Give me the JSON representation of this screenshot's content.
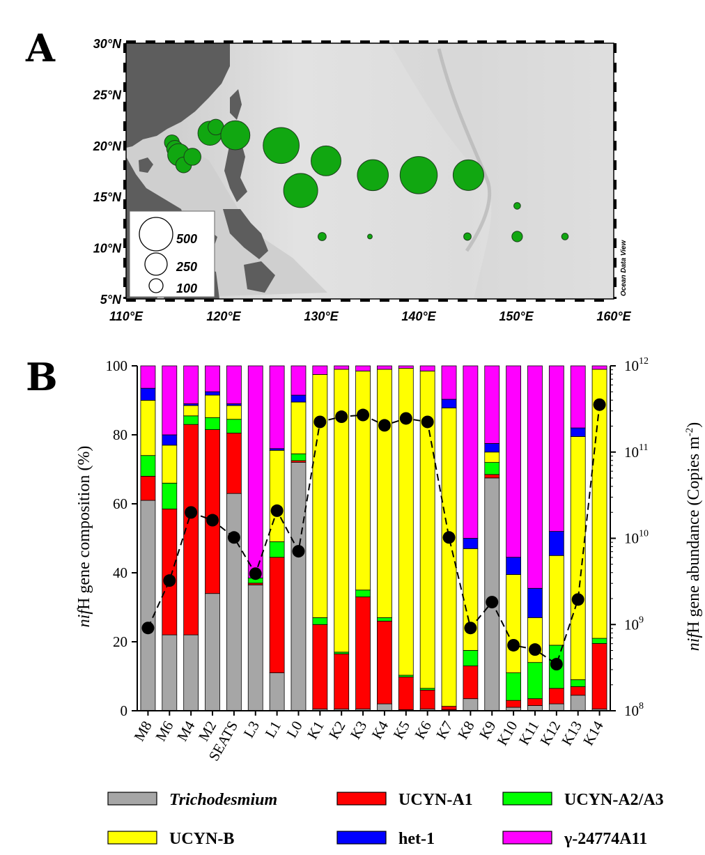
{
  "panels": {
    "a": "A",
    "b": "B"
  },
  "map": {
    "lon_labels": [
      "110°E",
      "120°E",
      "130°E",
      "140°E",
      "150°E",
      "160°E"
    ],
    "lat_labels": [
      "30°N",
      "25°N",
      "20°N",
      "15°N",
      "10°N",
      "5°N"
    ],
    "lon_range": [
      110,
      160
    ],
    "lat_range": [
      5,
      30
    ],
    "watermark": "Ocean Data View",
    "bubble_color": "#11a711",
    "size_legend": [
      {
        "label": "500",
        "value": 500
      },
      {
        "label": "250",
        "value": 250
      },
      {
        "label": "100",
        "value": 100
      }
    ],
    "stations": [
      {
        "lon": 114.7,
        "lat": 20.3,
        "value": 100
      },
      {
        "lon": 115.0,
        "lat": 19.7,
        "value": 120
      },
      {
        "lon": 115.4,
        "lat": 19.1,
        "value": 220
      },
      {
        "lon": 115.9,
        "lat": 18.1,
        "value": 110
      },
      {
        "lon": 116.8,
        "lat": 18.9,
        "value": 130
      },
      {
        "lon": 118.6,
        "lat": 21.2,
        "value": 260
      },
      {
        "lon": 119.2,
        "lat": 21.8,
        "value": 110
      },
      {
        "lon": 121.2,
        "lat": 21.0,
        "value": 380
      },
      {
        "lon": 125.9,
        "lat": 20.0,
        "value": 580
      },
      {
        "lon": 127.9,
        "lat": 15.6,
        "value": 520
      },
      {
        "lon": 130.5,
        "lat": 18.5,
        "value": 400
      },
      {
        "lon": 135.3,
        "lat": 17.1,
        "value": 430
      },
      {
        "lon": 140.0,
        "lat": 17.1,
        "value": 620
      },
      {
        "lon": 145.1,
        "lat": 17.1,
        "value": 420
      },
      {
        "lon": 130.1,
        "lat": 11.1,
        "value": 30
      },
      {
        "lon": 135.0,
        "lat": 11.1,
        "value": 10
      },
      {
        "lon": 145.0,
        "lat": 11.1,
        "value": 25
      },
      {
        "lon": 150.1,
        "lat": 14.1,
        "value": 20
      },
      {
        "lon": 150.1,
        "lat": 11.1,
        "value": 50
      },
      {
        "lon": 155.0,
        "lat": 11.1,
        "value": 20
      }
    ]
  },
  "chart_data": {
    "type": "bar",
    "title": "",
    "stacked": true,
    "xlabel": "",
    "ylabel_prefix": "nif",
    "ylabel_suffix": "H gene composition (%)",
    "y2label_prefix": "nif",
    "y2label_mid": "H gene abundance (Copies m",
    "y2label_sup": "-2",
    "y2label_end": ")",
    "ylim": [
      0,
      100
    ],
    "yticks": [
      "0",
      "20",
      "40",
      "60",
      "80",
      "100"
    ],
    "y2_log_range": [
      8,
      12
    ],
    "y2ticks": [
      {
        "base": "10",
        "exp": "8"
      },
      {
        "base": "10",
        "exp": "9"
      },
      {
        "base": "10",
        "exp": "10"
      },
      {
        "base": "10",
        "exp": "11"
      },
      {
        "base": "10",
        "exp": "12"
      }
    ],
    "categories": [
      "M8",
      "M6",
      "M4",
      "M2",
      "SEATS",
      "L3",
      "L1",
      "L0",
      "K1",
      "K2",
      "K3",
      "K4",
      "K5",
      "K6",
      "K7",
      "K8",
      "K9",
      "K10",
      "K11",
      "K12",
      "K13",
      "K14"
    ],
    "series": [
      {
        "name": "Trichodesmium",
        "italic": true,
        "color": "#a6a6a6",
        "values": [
          61,
          22,
          22,
          34,
          63,
          36.5,
          11,
          72,
          0.5,
          0.5,
          0.5,
          2,
          0.3,
          0.5,
          0.3,
          3.5,
          67.5,
          1,
          1.5,
          2,
          4.5,
          0.5
        ]
      },
      {
        "name": "UCYN-A1",
        "italic": false,
        "color": "#ff0000",
        "values": [
          7,
          36.5,
          61,
          47.5,
          17.5,
          0.5,
          33.5,
          0.5,
          24.5,
          16,
          32.5,
          24,
          9.5,
          5.5,
          1,
          9.5,
          1,
          2,
          2,
          4.5,
          2.5,
          19
        ]
      },
      {
        "name": "UCYN-A2/A3",
        "italic": false,
        "color": "#00ff00",
        "values": [
          6,
          7.5,
          2.5,
          3.5,
          4,
          1.5,
          4.5,
          2,
          2,
          0.5,
          2,
          1,
          0.5,
          0.5,
          0,
          4.5,
          3.5,
          8,
          10.5,
          12.5,
          2,
          1.5
        ]
      },
      {
        "name": "UCYN-B",
        "italic": false,
        "color": "#ffff00",
        "values": [
          16,
          11,
          3,
          6.5,
          4,
          0,
          26.5,
          15,
          70.5,
          82,
          63.5,
          72,
          89,
          92,
          86.5,
          29.5,
          3,
          28.5,
          13,
          26,
          70.5,
          78
        ]
      },
      {
        "name": "het-1",
        "italic": false,
        "color": "#0000ff",
        "values": [
          3.5,
          3,
          0.5,
          1,
          0.5,
          0,
          0.5,
          2,
          0,
          0,
          0,
          0,
          0,
          0,
          2.5,
          3,
          2.5,
          5,
          8.5,
          7,
          2.5,
          0
        ]
      },
      {
        "name": "γ-24774A11",
        "italic": false,
        "color": "#ff00ff",
        "values": [
          6.5,
          20,
          11,
          7.5,
          11,
          61.5,
          24,
          8.5,
          2.5,
          1,
          1.5,
          1,
          0.7,
          1.5,
          9.7,
          50,
          22.5,
          55.5,
          64.5,
          48,
          18,
          1
        ]
      }
    ],
    "abundance": {
      "name": "nifH gene abundance",
      "unit": "Copies m-2",
      "log10_values": [
        8.96,
        9.51,
        10.3,
        10.21,
        10.01,
        9.59,
        10.32,
        9.85,
        11.35,
        11.41,
        11.43,
        11.31,
        11.39,
        11.35,
        10.01,
        8.96,
        9.26,
        8.76,
        8.71,
        8.54,
        9.29,
        11.55
      ]
    }
  }
}
